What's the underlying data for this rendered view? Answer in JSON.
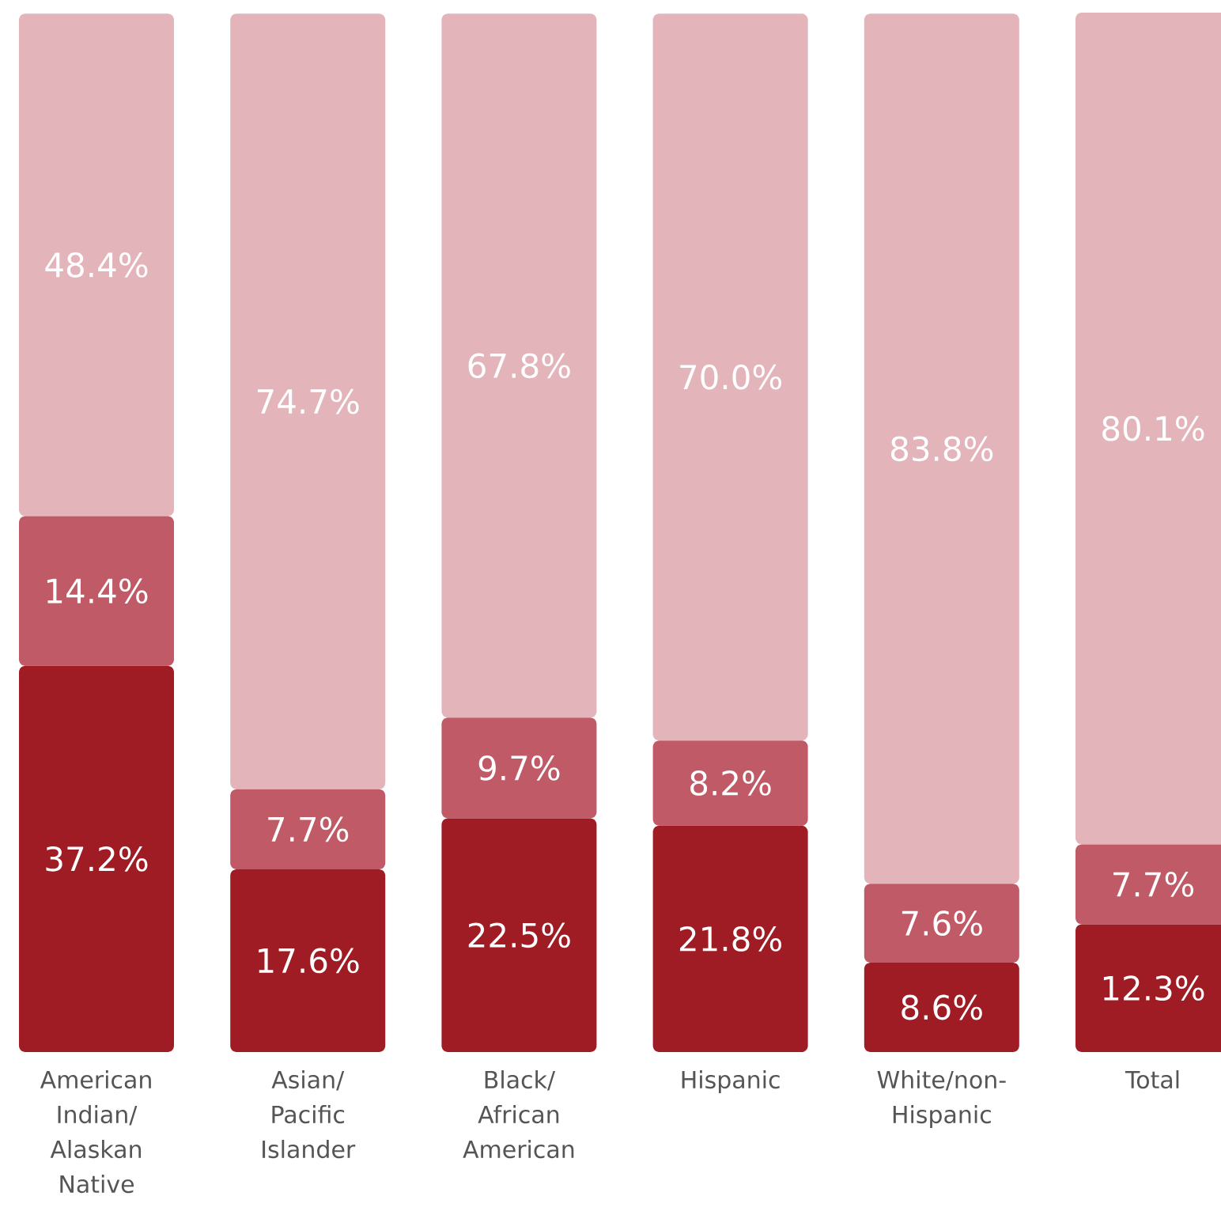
{
  "chart_data": {
    "type": "bar",
    "stacked": true,
    "tick_labels": "x",
    "categories": [
      "American Indian/ Alaskan Native",
      "Asian/ Pacific Islander",
      "Black/ African American",
      "Hispanic",
      "White/non-Hispanic",
      "Total"
    ],
    "series": [
      {
        "color": "#a01c24",
        "values": [
          37.2,
          17.6,
          22.5,
          21.8,
          8.6,
          12.3
        ],
        "value_labels": [
          "37.2%",
          "17.6%",
          "22.5%",
          "21.8%",
          "8.6%",
          "12.3%"
        ]
      },
      {
        "color": "#c05a66",
        "values": [
          14.4,
          7.7,
          9.7,
          8.2,
          7.6,
          7.7
        ],
        "value_labels": [
          "14.4%",
          "7.7%",
          "9.7%",
          "8.2%",
          "7.6%",
          "7.7%"
        ]
      },
      {
        "color": "#e3b5bb",
        "values": [
          48.4,
          74.7,
          67.8,
          70.0,
          83.8,
          80.1
        ],
        "value_labels": [
          "48.4%",
          "74.7%",
          "67.8%",
          "70.0%",
          "83.8%",
          "80.1%"
        ]
      }
    ]
  }
}
